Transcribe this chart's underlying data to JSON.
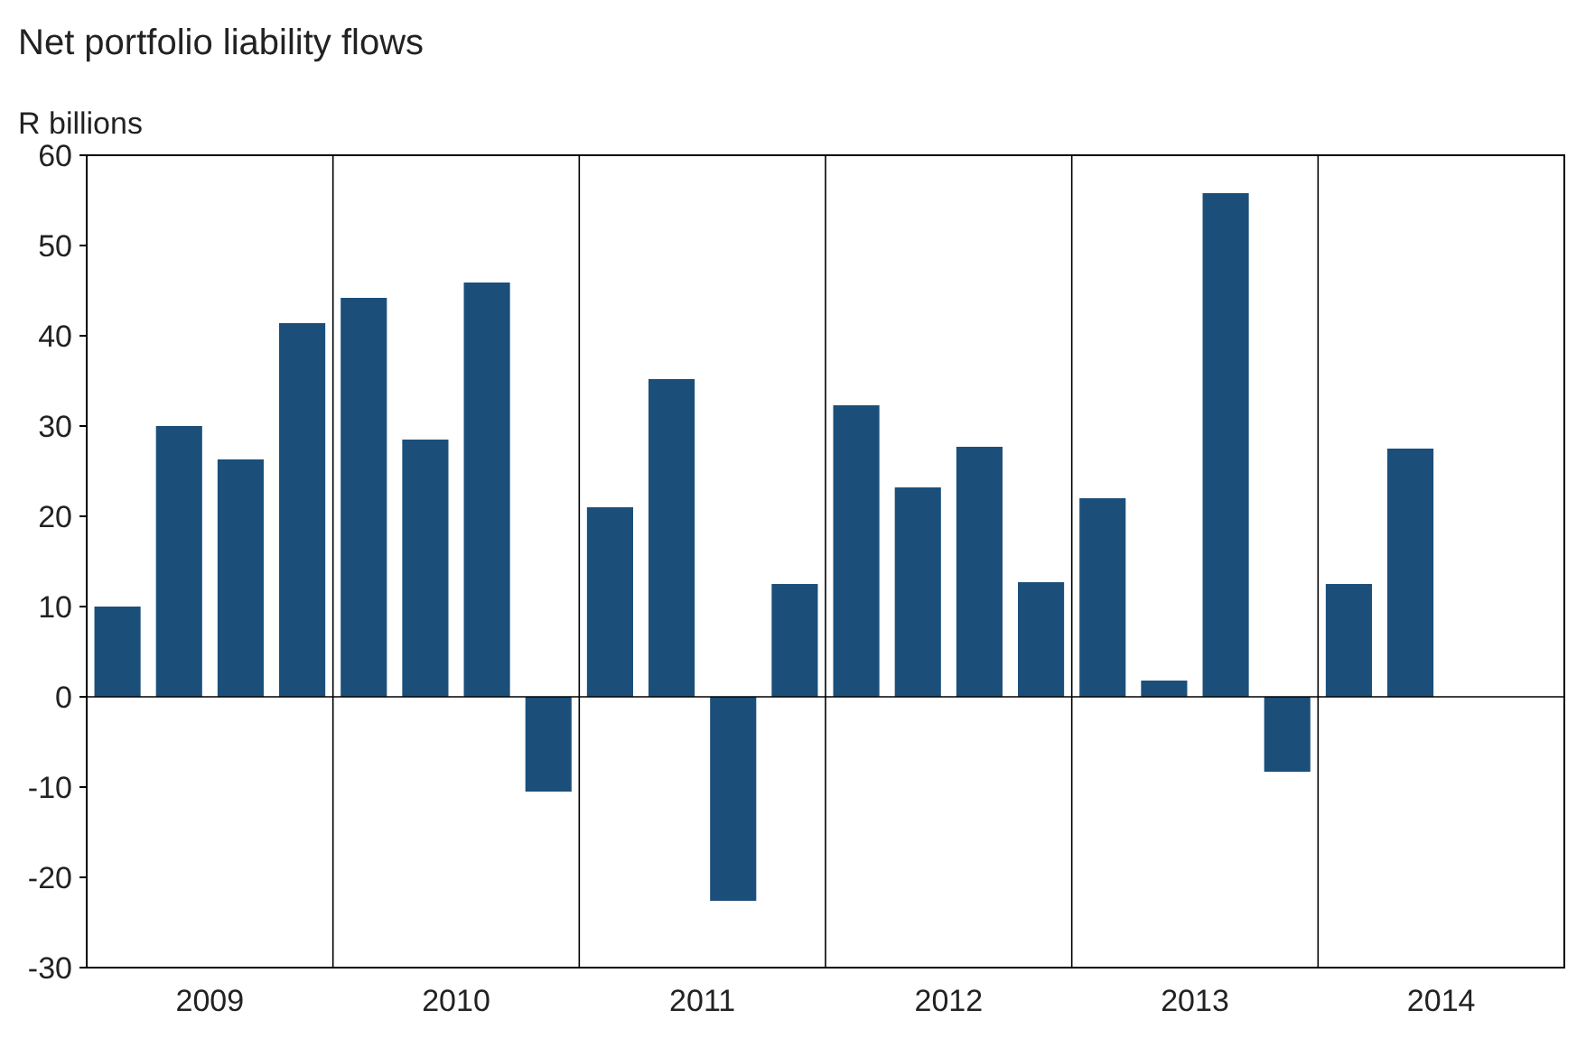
{
  "chart_data": {
    "type": "bar",
    "title": "Net portfolio liability flows",
    "ylabel": "R billions",
    "categories": [
      null,
      "2009",
      null,
      null,
      null,
      "2010",
      null,
      null,
      null,
      "2011",
      null,
      null,
      null,
      "2012",
      null,
      null,
      null,
      "2013",
      null,
      null,
      null,
      "2014",
      null,
      null
    ],
    "values": [
      10,
      30,
      26.3,
      41.4,
      44.2,
      28.5,
      45.9,
      -10.5,
      21,
      35.2,
      -22.6,
      12.5,
      32.3,
      23.2,
      27.7,
      12.7,
      22,
      1.8,
      55.8,
      -8.3,
      12.5,
      27.5,
      null,
      null
    ],
    "color": "#1b4f7a",
    "ylim": [
      -30,
      60
    ],
    "yticks": [
      -30,
      -20,
      -10,
      0,
      10,
      20,
      30,
      40,
      50,
      60
    ],
    "grid": "x",
    "ref_lines": [
      {
        "axis": "y",
        "value": 0
      }
    ]
  }
}
